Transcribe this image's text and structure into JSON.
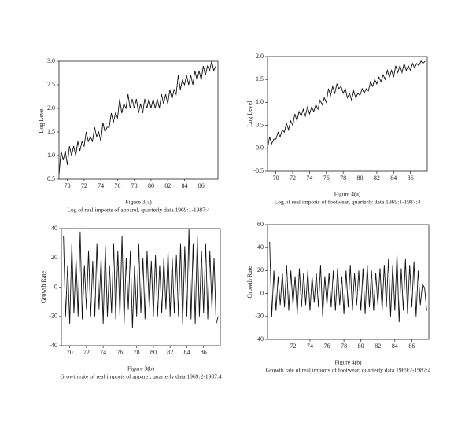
{
  "chart_data": [
    {
      "type": "line",
      "figure_label": "Figure 3(a)",
      "caption": "Log of real imports of apparel, quarterly data 1969:1-1987:4",
      "y_label": "Log Level",
      "x": [
        69,
        69.25,
        69.5,
        69.75,
        70,
        70.25,
        70.5,
        70.75,
        71,
        71.25,
        71.5,
        71.75,
        72,
        72.25,
        72.5,
        72.75,
        73,
        73.25,
        73.5,
        73.75,
        74,
        74.25,
        74.5,
        74.75,
        75,
        75.25,
        75.5,
        75.75,
        76,
        76.25,
        76.5,
        76.75,
        77,
        77.25,
        77.5,
        77.75,
        78,
        78.25,
        78.5,
        78.75,
        79,
        79.25,
        79.5,
        79.75,
        80,
        80.25,
        80.5,
        80.75,
        81,
        81.25,
        81.5,
        81.75,
        82,
        82.25,
        82.5,
        82.75,
        83,
        83.25,
        83.5,
        83.75,
        84,
        84.25,
        84.5,
        84.75,
        85,
        85.25,
        85.5,
        85.75,
        86,
        86.25,
        86.5,
        86.75,
        87,
        87.25,
        87.5,
        87.75
      ],
      "series": [
        {
          "color": "#111111",
          "values": [
            0.6,
            1.1,
            0.9,
            1.1,
            0.8,
            1.2,
            1.0,
            1.2,
            1.0,
            1.3,
            1.1,
            1.3,
            1.2,
            1.5,
            1.3,
            1.4,
            1.3,
            1.6,
            1.4,
            1.5,
            1.3,
            1.7,
            1.5,
            1.6,
            1.6,
            1.9,
            1.7,
            1.9,
            1.8,
            2.2,
            1.9,
            2.1,
            2.0,
            2.3,
            2.0,
            2.2,
            2.0,
            2.2,
            1.9,
            2.1,
            1.9,
            2.2,
            2.0,
            2.2,
            2.0,
            2.2,
            2.0,
            2.2,
            2.0,
            2.3,
            2.1,
            2.3,
            2.1,
            2.4,
            2.2,
            2.4,
            2.3,
            2.7,
            2.4,
            2.6,
            2.5,
            2.7,
            2.5,
            2.7,
            2.5,
            2.8,
            2.6,
            2.8,
            2.6,
            2.9,
            2.7,
            2.9,
            2.8,
            3.0,
            2.8,
            2.9
          ]
        }
      ],
      "xlim": [
        69,
        88
      ],
      "xticks": [
        70,
        72,
        74,
        76,
        78,
        80,
        82,
        84,
        86
      ],
      "ylim": [
        0.5,
        3.0
      ],
      "yticks": [
        {
          "value": 0.5,
          "label": "0.5"
        },
        {
          "value": 1,
          "label": "1.0"
        },
        {
          "value": 1.5,
          "label": "1.5"
        },
        {
          "value": 2,
          "label": "2.0"
        },
        {
          "value": 2.5,
          "label": "2.5"
        },
        {
          "value": 3,
          "label": "3.0"
        }
      ]
    },
    {
      "type": "line",
      "figure_label": "Figure 4(a)",
      "caption": "Log of real imports of footwear, quarterly data 1969:1-1987:4",
      "y_label": "Log Level",
      "x": [
        69,
        69.25,
        69.5,
        69.75,
        70,
        70.25,
        70.5,
        70.75,
        71,
        71.25,
        71.5,
        71.75,
        72,
        72.25,
        72.5,
        72.75,
        73,
        73.25,
        73.5,
        73.75,
        74,
        74.25,
        74.5,
        74.75,
        75,
        75.25,
        75.5,
        75.75,
        76,
        76.25,
        76.5,
        76.75,
        77,
        77.25,
        77.5,
        77.75,
        78,
        78.25,
        78.5,
        78.75,
        79,
        79.25,
        79.5,
        79.75,
        80,
        80.25,
        80.5,
        80.75,
        81,
        81.25,
        81.5,
        81.75,
        82,
        82.25,
        82.5,
        82.75,
        83,
        83.25,
        83.5,
        83.75,
        84,
        84.25,
        84.5,
        84.75,
        85,
        85.25,
        85.5,
        85.75,
        86,
        86.25,
        86.5,
        86.75,
        87,
        87.25,
        87.5,
        87.75
      ],
      "series": [
        {
          "color": "#111111",
          "values": [
            0.0,
            0.25,
            0.1,
            0.2,
            0.2,
            0.35,
            0.25,
            0.4,
            0.35,
            0.55,
            0.4,
            0.6,
            0.5,
            0.75,
            0.6,
            0.8,
            0.7,
            0.85,
            0.7,
            0.9,
            0.75,
            0.9,
            0.8,
            0.95,
            0.85,
            1.05,
            0.95,
            1.1,
            1.0,
            1.3,
            1.15,
            1.35,
            1.2,
            1.4,
            1.3,
            1.35,
            1.2,
            1.3,
            1.1,
            1.2,
            1.05,
            1.25,
            1.1,
            1.2,
            1.15,
            1.3,
            1.2,
            1.3,
            1.25,
            1.45,
            1.35,
            1.5,
            1.4,
            1.55,
            1.45,
            1.6,
            1.5,
            1.7,
            1.55,
            1.7,
            1.55,
            1.8,
            1.65,
            1.8,
            1.65,
            1.85,
            1.7,
            1.8,
            1.7,
            1.85,
            1.75,
            1.85,
            1.8,
            1.9,
            1.85,
            1.9
          ]
        }
      ],
      "xlim": [
        69,
        88
      ],
      "xticks": [
        70,
        72,
        74,
        76,
        78,
        80,
        82,
        84,
        86
      ],
      "ylim": [
        -0.5,
        2.0
      ],
      "yticks": [
        {
          "value": -0.5,
          "label": "-0.5"
        },
        {
          "value": 0,
          "label": "0.0"
        },
        {
          "value": 0.5,
          "label": "0.5"
        },
        {
          "value": 1,
          "label": "1.0"
        },
        {
          "value": 1.5,
          "label": "1.5"
        },
        {
          "value": 2,
          "label": "2.0"
        }
      ]
    },
    {
      "type": "line",
      "figure_label": "Figure 3(b)",
      "caption": "Growth rate of real imports of apparel, quarterly data 1969:2-1987:4",
      "y_label": "Growth Rate",
      "x": [
        69.25,
        69.5,
        69.75,
        70,
        70.25,
        70.5,
        70.75,
        71,
        71.25,
        71.5,
        71.75,
        72,
        72.25,
        72.5,
        72.75,
        73,
        73.25,
        73.5,
        73.75,
        74,
        74.25,
        74.5,
        74.75,
        75,
        75.25,
        75.5,
        75.75,
        76,
        76.25,
        76.5,
        76.75,
        77,
        77.25,
        77.5,
        77.75,
        78,
        78.25,
        78.5,
        78.75,
        79,
        79.25,
        79.5,
        79.75,
        80,
        80.25,
        80.5,
        80.75,
        81,
        81.25,
        81.5,
        81.75,
        82,
        82.25,
        82.5,
        82.75,
        83,
        83.25,
        83.5,
        83.75,
        84,
        84.25,
        84.5,
        84.75,
        85,
        85.25,
        85.5,
        85.75,
        86,
        86.25,
        86.5,
        86.75,
        87,
        87.25,
        87.5,
        87.75
      ],
      "series": [
        {
          "color": "#111111",
          "values": [
            35,
            -20,
            15,
            -25,
            30,
            -18,
            20,
            -20,
            38,
            -22,
            15,
            -15,
            25,
            -20,
            18,
            -20,
            30,
            -15,
            20,
            -25,
            28,
            -20,
            15,
            -18,
            30,
            -22,
            25,
            -20,
            35,
            -25,
            20,
            -15,
            25,
            -28,
            15,
            -20,
            30,
            -18,
            20,
            -22,
            25,
            -15,
            18,
            -20,
            22,
            -20,
            15,
            -18,
            20,
            -15,
            25,
            -20,
            20,
            -18,
            22,
            -20,
            30,
            -25,
            28,
            -20,
            40,
            -22,
            30,
            -25,
            35,
            -20,
            25,
            -18,
            30,
            -22,
            25,
            -15,
            20,
            -25,
            -20
          ]
        }
      ],
      "xlim": [
        69,
        88
      ],
      "xticks": [
        70,
        72,
        74,
        76,
        78,
        80,
        82,
        84,
        86
      ],
      "ylim": [
        -40,
        40
      ],
      "yticks": [
        -40,
        -20,
        0,
        20,
        40
      ]
    },
    {
      "type": "line",
      "figure_label": "Figure 4(b)",
      "caption": "Growth rate of real imports of footwear, quarterly data 1969:2-1987:4",
      "y_label": "Growth Rate",
      "x": [
        69.25,
        69.5,
        69.75,
        70,
        70.25,
        70.5,
        70.75,
        71,
        71.25,
        71.5,
        71.75,
        72,
        72.25,
        72.5,
        72.75,
        73,
        73.25,
        73.5,
        73.75,
        74,
        74.25,
        74.5,
        74.75,
        75,
        75.25,
        75.5,
        75.75,
        76,
        76.25,
        76.5,
        76.75,
        77,
        77.25,
        77.5,
        77.75,
        78,
        78.25,
        78.5,
        78.75,
        79,
        79.25,
        79.5,
        79.75,
        80,
        80.25,
        80.5,
        80.75,
        81,
        81.25,
        81.5,
        81.75,
        82,
        82.25,
        82.5,
        82.75,
        83,
        83.25,
        83.5,
        83.75,
        84,
        84.25,
        84.5,
        84.75,
        85,
        85.25,
        85.5,
        85.75,
        86,
        86.25,
        86.5,
        86.75,
        87,
        87.25,
        87.5,
        87.75
      ],
      "series": [
        {
          "color": "#111111",
          "values": [
            45,
            -20,
            20,
            -15,
            15,
            -10,
            18,
            -12,
            25,
            -15,
            20,
            -10,
            15,
            -18,
            22,
            -12,
            18,
            -10,
            20,
            -15,
            15,
            -8,
            18,
            -12,
            25,
            -20,
            15,
            -10,
            18,
            -12,
            20,
            -15,
            22,
            -10,
            15,
            -18,
            20,
            -12,
            25,
            -15,
            18,
            -10,
            20,
            -15,
            22,
            -18,
            25,
            -12,
            20,
            -15,
            18,
            -10,
            22,
            -15,
            25,
            -12,
            30,
            -20,
            25,
            -15,
            35,
            -25,
            22,
            -15,
            30,
            -18,
            25,
            -12,
            28,
            -20,
            20,
            -10,
            8,
            5,
            -15
          ]
        }
      ],
      "xlim": [
        69,
        88
      ],
      "xticks": [
        72,
        74,
        76,
        78,
        80,
        82,
        84,
        86
      ],
      "ylim": [
        -40,
        60
      ],
      "yticks": [
        -40,
        -20,
        0,
        20,
        40,
        60
      ]
    }
  ]
}
